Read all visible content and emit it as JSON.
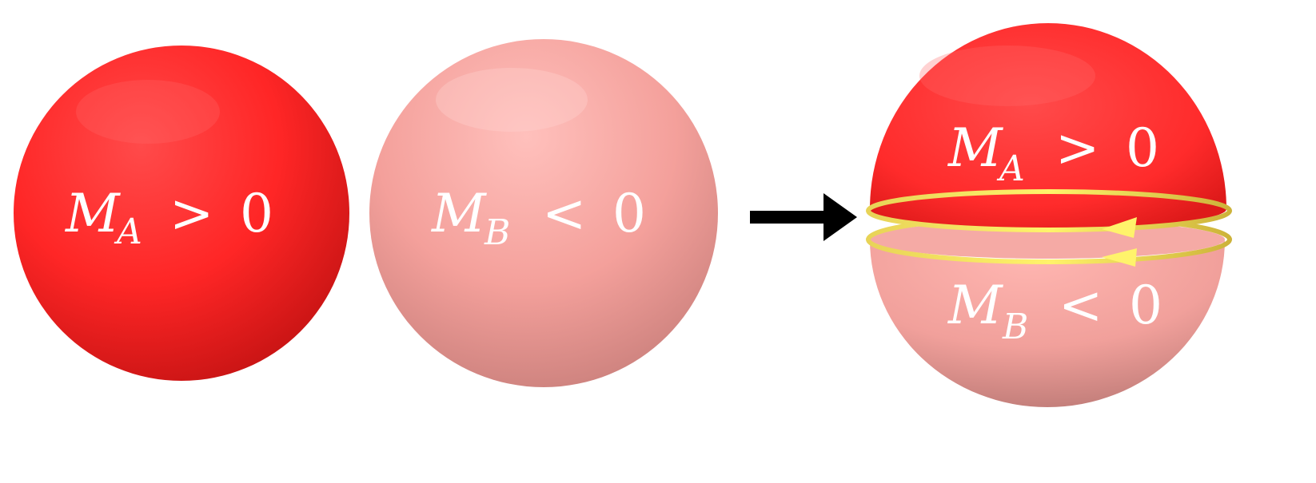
{
  "spheres": [
    {
      "id": "A",
      "symbol": "M",
      "subscript": "A",
      "relation": ">",
      "value": "0",
      "color": "#ff2a2a"
    },
    {
      "id": "B",
      "symbol": "M",
      "subscript": "B",
      "relation": "<",
      "value": "0",
      "color": "#f6a39f"
    }
  ],
  "combined": {
    "top": {
      "symbol": "M",
      "subscript": "A",
      "relation": ">",
      "value": "0",
      "color": "#ff2a2a"
    },
    "bottom": {
      "symbol": "M",
      "subscript": "B",
      "relation": "<",
      "value": "0",
      "color": "#f6a39f"
    },
    "edge_current_color": "#fff36b"
  },
  "arrow_color": "#000000"
}
